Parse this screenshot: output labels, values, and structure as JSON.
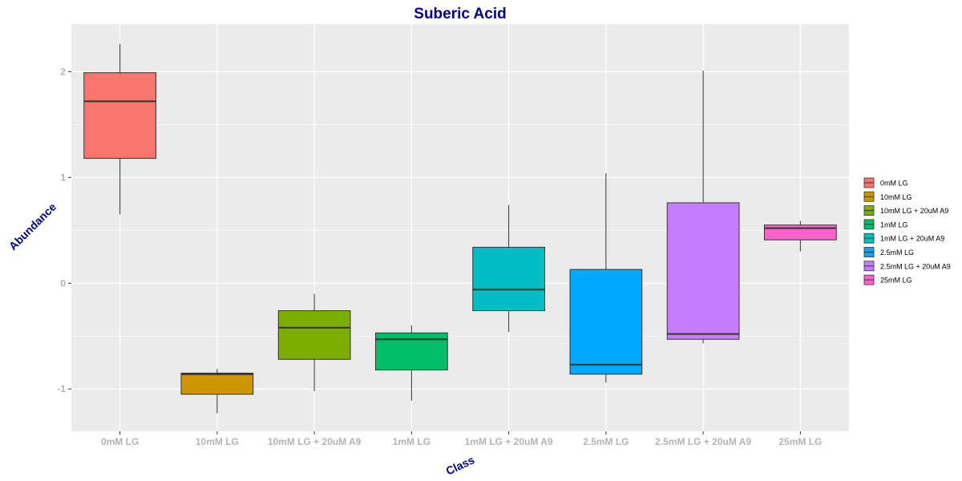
{
  "chart_data": {
    "type": "box",
    "title": "Suberic Acid",
    "xlabel": "Class",
    "ylabel": "Abundance",
    "ylim": [
      -1.4,
      2.45
    ],
    "y_ticks": [
      -1,
      0,
      1,
      2
    ],
    "grid": true,
    "legend_position": "right",
    "categories": [
      "0mM LG",
      "10mM LG",
      "10mM LG + 20uM A9",
      "1mM LG",
      "1mM LG + 20uM A9",
      "2.5mM LG",
      "2.5mM LG + 20uM A9",
      "25mM LG"
    ],
    "boxes": [
      {
        "name": "0mM LG",
        "color": "#F8766D",
        "whisker_low": 0.65,
        "q1": 1.18,
        "median": 1.72,
        "q3": 1.99,
        "whisker_high": 2.26
      },
      {
        "name": "10mM LG",
        "color": "#CD9600",
        "whisker_low": -1.23,
        "q1": -1.05,
        "median": -0.86,
        "q3": -0.85,
        "whisker_high": -0.81
      },
      {
        "name": "10mM LG + 20uM A9",
        "color": "#7CAE00",
        "whisker_low": -1.02,
        "q1": -0.72,
        "median": -0.42,
        "q3": -0.26,
        "whisker_high": -0.1
      },
      {
        "name": "1mM LG",
        "color": "#00BE67",
        "whisker_low": -1.11,
        "q1": -0.82,
        "median": -0.53,
        "q3": -0.47,
        "whisker_high": -0.4
      },
      {
        "name": "1mM LG + 20uM A9",
        "color": "#00BFC4",
        "whisker_low": -0.46,
        "q1": -0.26,
        "median": -0.06,
        "q3": 0.34,
        "whisker_high": 0.74
      },
      {
        "name": "2.5mM LG",
        "color": "#00A9FF",
        "whisker_low": -0.94,
        "q1": -0.86,
        "median": -0.77,
        "q3": 0.13,
        "whisker_high": 1.04
      },
      {
        "name": "2.5mM LG + 20uM A9",
        "color": "#C77CFF",
        "whisker_low": -0.57,
        "q1": -0.53,
        "median": -0.48,
        "q3": 0.76,
        "whisker_high": 2.01
      },
      {
        "name": "25mM LG",
        "color": "#FF61CC",
        "whisker_low": 0.3,
        "q1": 0.41,
        "median": 0.52,
        "q3": 0.55,
        "whisker_high": 0.59
      }
    ]
  }
}
